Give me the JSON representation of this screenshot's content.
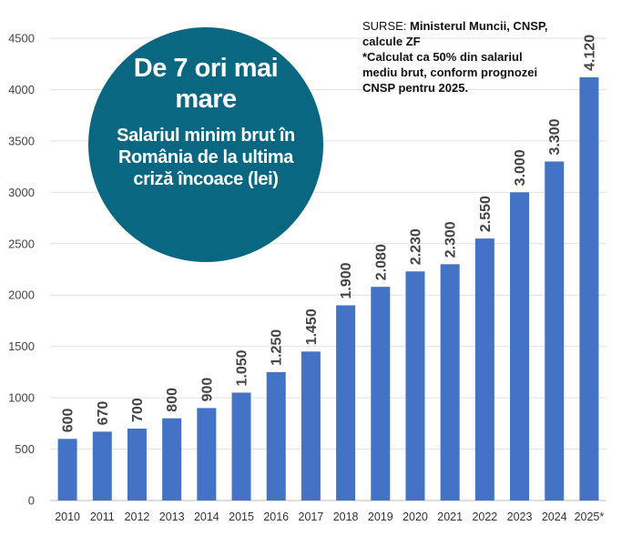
{
  "bubble": {
    "headline": "De 7 ori mai mare",
    "subtitle": "Salariul minim brut în România de la ultima criză încoace (lei)",
    "color": "#0a6781"
  },
  "sources": {
    "label": "SURSE:",
    "text": "Ministerul Muncii, CNSP, calcule ZF",
    "note": "*Calculat ca 50% din salariul mediu brut, conform prognozei CNSP pentru 2025."
  },
  "chart_data": {
    "type": "bar",
    "title": "Salariul minim brut în România de la ultima criză încoace (lei)",
    "categories": [
      "2010",
      "2011",
      "2012",
      "2013",
      "2014",
      "2015",
      "2016",
      "2017",
      "2018",
      "2019",
      "2020",
      "2021",
      "2022",
      "2023",
      "2024",
      "2025*"
    ],
    "values": [
      600,
      670,
      700,
      800,
      900,
      1050,
      1250,
      1450,
      1900,
      2080,
      2230,
      2300,
      2550,
      3000,
      3300,
      4120
    ],
    "value_labels": [
      "600",
      "670",
      "700",
      "800",
      "900",
      "1.050",
      "1.250",
      "1.450",
      "1.900",
      "2.080",
      "2.230",
      "2.300",
      "2.550",
      "3.000",
      "3.300",
      "4.120"
    ],
    "yticks": [
      0,
      500,
      1000,
      1500,
      2000,
      2500,
      3000,
      3500,
      4000,
      4500
    ],
    "ylim": [
      0,
      4500
    ],
    "grid": true,
    "bar_color": "#4472c4",
    "xlabel": "",
    "ylabel": ""
  }
}
